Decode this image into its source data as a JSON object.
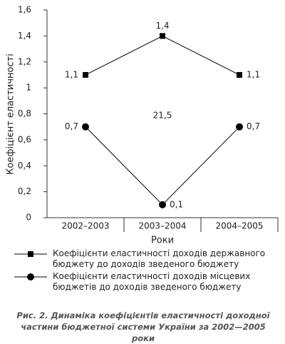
{
  "chart_data": {
    "type": "line",
    "y_label": "Коефіцієнт еластичності",
    "x_label": "Роки",
    "categories": [
      "2002–2003",
      "2003–2004",
      "2004–2005"
    ],
    "series": [
      {
        "name": "Коефіцієнти еластичності доходів державного бюджету до доходів зведеного бюджету",
        "color": "#000000",
        "marker": "square",
        "values": [
          1.1,
          1.4,
          1.1
        ],
        "value_labels": [
          "1,1",
          "1,4",
          "1,1"
        ]
      },
      {
        "name": "Коефіцієнти еластичності доходів місцевих бюджетів до доходів зведеного бюджету",
        "color": "#000000",
        "marker": "circle",
        "values": [
          0.7,
          0.1,
          0.7
        ],
        "value_labels": [
          "0,7",
          "0,1",
          "0,7"
        ]
      }
    ],
    "annotation": "21,5",
    "ylim": [
      0,
      1.6
    ],
    "yticks": [
      0,
      {
        "value": 0.2,
        "label": "0,2"
      },
      {
        "value": 0.4,
        "label": "0,4"
      },
      {
        "value": 0.6,
        "label": "0,6"
      },
      {
        "value": 0.8,
        "label": "0,8"
      },
      1,
      {
        "value": 1.2,
        "label": "1,2"
      },
      {
        "value": 1.4,
        "label": "1,4"
      },
      {
        "value": 1.6,
        "label": "1,6"
      }
    ],
    "grid": false,
    "caption": "Рис. 2. Динаміка коефіцієнтів еластичності доходної частини бюджетної системи України за 2002—2005 роки"
  }
}
